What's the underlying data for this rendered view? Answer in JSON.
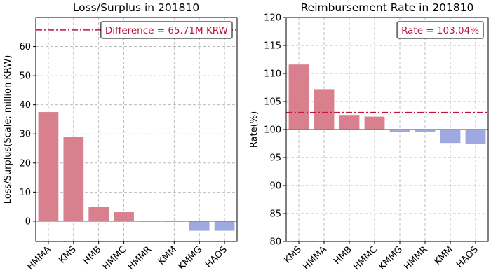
{
  "colors": {
    "positive_bar": "#d9808f",
    "negative_bar": "#9fa8df",
    "reference_line": "#c0143c",
    "baseline": "#808080",
    "grid": "#b0b0b0"
  },
  "chart_data": [
    {
      "type": "bar",
      "title": "Loss/Surplus in 201810",
      "xlabel": "",
      "ylabel": "Loss/Surplus(Scale: million KRW)",
      "categories": [
        "HMMA",
        "KMS",
        "HMB",
        "HMMC",
        "HMMR",
        "KMM",
        "KMMG",
        "HAOS"
      ],
      "values": [
        37.5,
        29.0,
        4.8,
        3.1,
        -0.2,
        -0.2,
        -3.3,
        -3.3
      ],
      "ylim": [
        -7,
        70
      ],
      "yticks": [
        0,
        10,
        20,
        30,
        40,
        50,
        60
      ],
      "baseline": 0,
      "reference_line": 65.71,
      "annotation": "Difference = 65.71M KRW",
      "annotation_position": "top-right",
      "grid": true
    },
    {
      "type": "bar",
      "title": "Reimbursement Rate in 201810",
      "xlabel": "",
      "ylabel": "Rate(%)",
      "categories": [
        "KMS",
        "HMMA",
        "HMB",
        "HMMC",
        "KMMG",
        "HMMR",
        "KMM",
        "HAOS"
      ],
      "values": [
        111.6,
        107.2,
        102.6,
        102.3,
        99.6,
        99.6,
        97.6,
        97.4
      ],
      "ylim": [
        80,
        120
      ],
      "yticks": [
        80,
        85,
        90,
        95,
        100,
        105,
        110,
        115,
        120
      ],
      "baseline": 100,
      "reference_line": 103.04,
      "annotation": "Rate = 103.04%",
      "annotation_position": "top-right",
      "grid": true
    }
  ]
}
